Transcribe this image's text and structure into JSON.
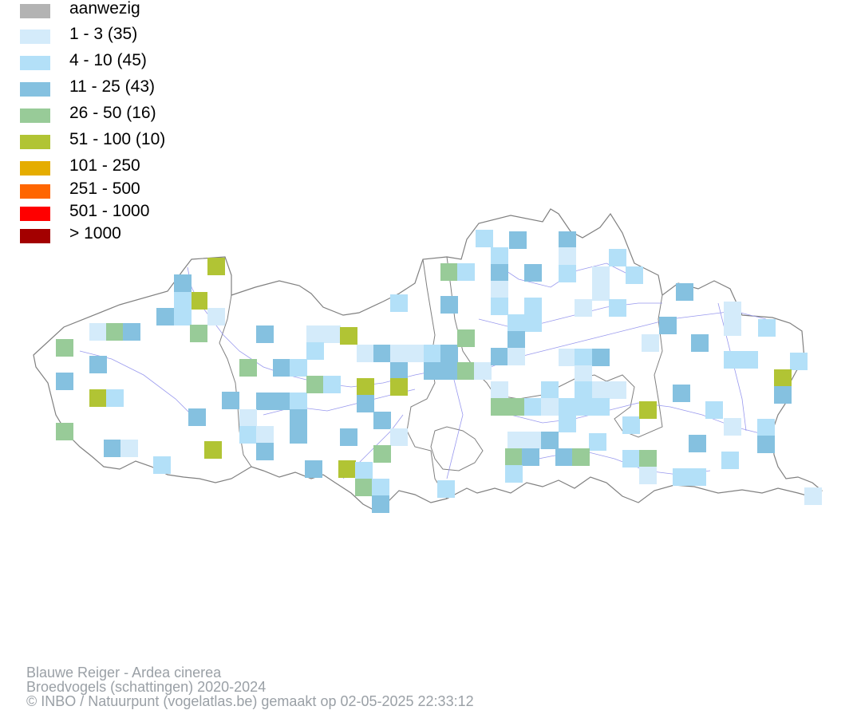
{
  "legend": {
    "items": [
      {
        "label": "aanwezig",
        "color": "#b3b3b3"
      },
      {
        "label": "1 - 3 (35)",
        "color": "#d4ebfa"
      },
      {
        "label": "4 - 10 (45)",
        "color": "#b3e0f8"
      },
      {
        "label": "11 - 25 (43)",
        "color": "#85c1e0"
      },
      {
        "label": "26 - 50 (16)",
        "color": "#98cb98"
      },
      {
        "label": "51 - 100 (10)",
        "color": "#b1c434"
      },
      {
        "label": "101 - 250",
        "color": "#e5ad00"
      },
      {
        "label": "251 - 500",
        "color": "#ff6600"
      },
      {
        "label": "501 - 1000",
        "color": "#ff0000"
      },
      {
        "label": "> 1000",
        "color": "#a30000"
      }
    ]
  },
  "footer": {
    "species": "Blauwe Reiger - Ardea cinerea",
    "dataset": "Broedvogels (schattingen) 2020-2024",
    "credit": "© INBO / Natuurpunt (vogelatlas.be) gemaakt op 02-05-2025 22:33:12"
  }
}
